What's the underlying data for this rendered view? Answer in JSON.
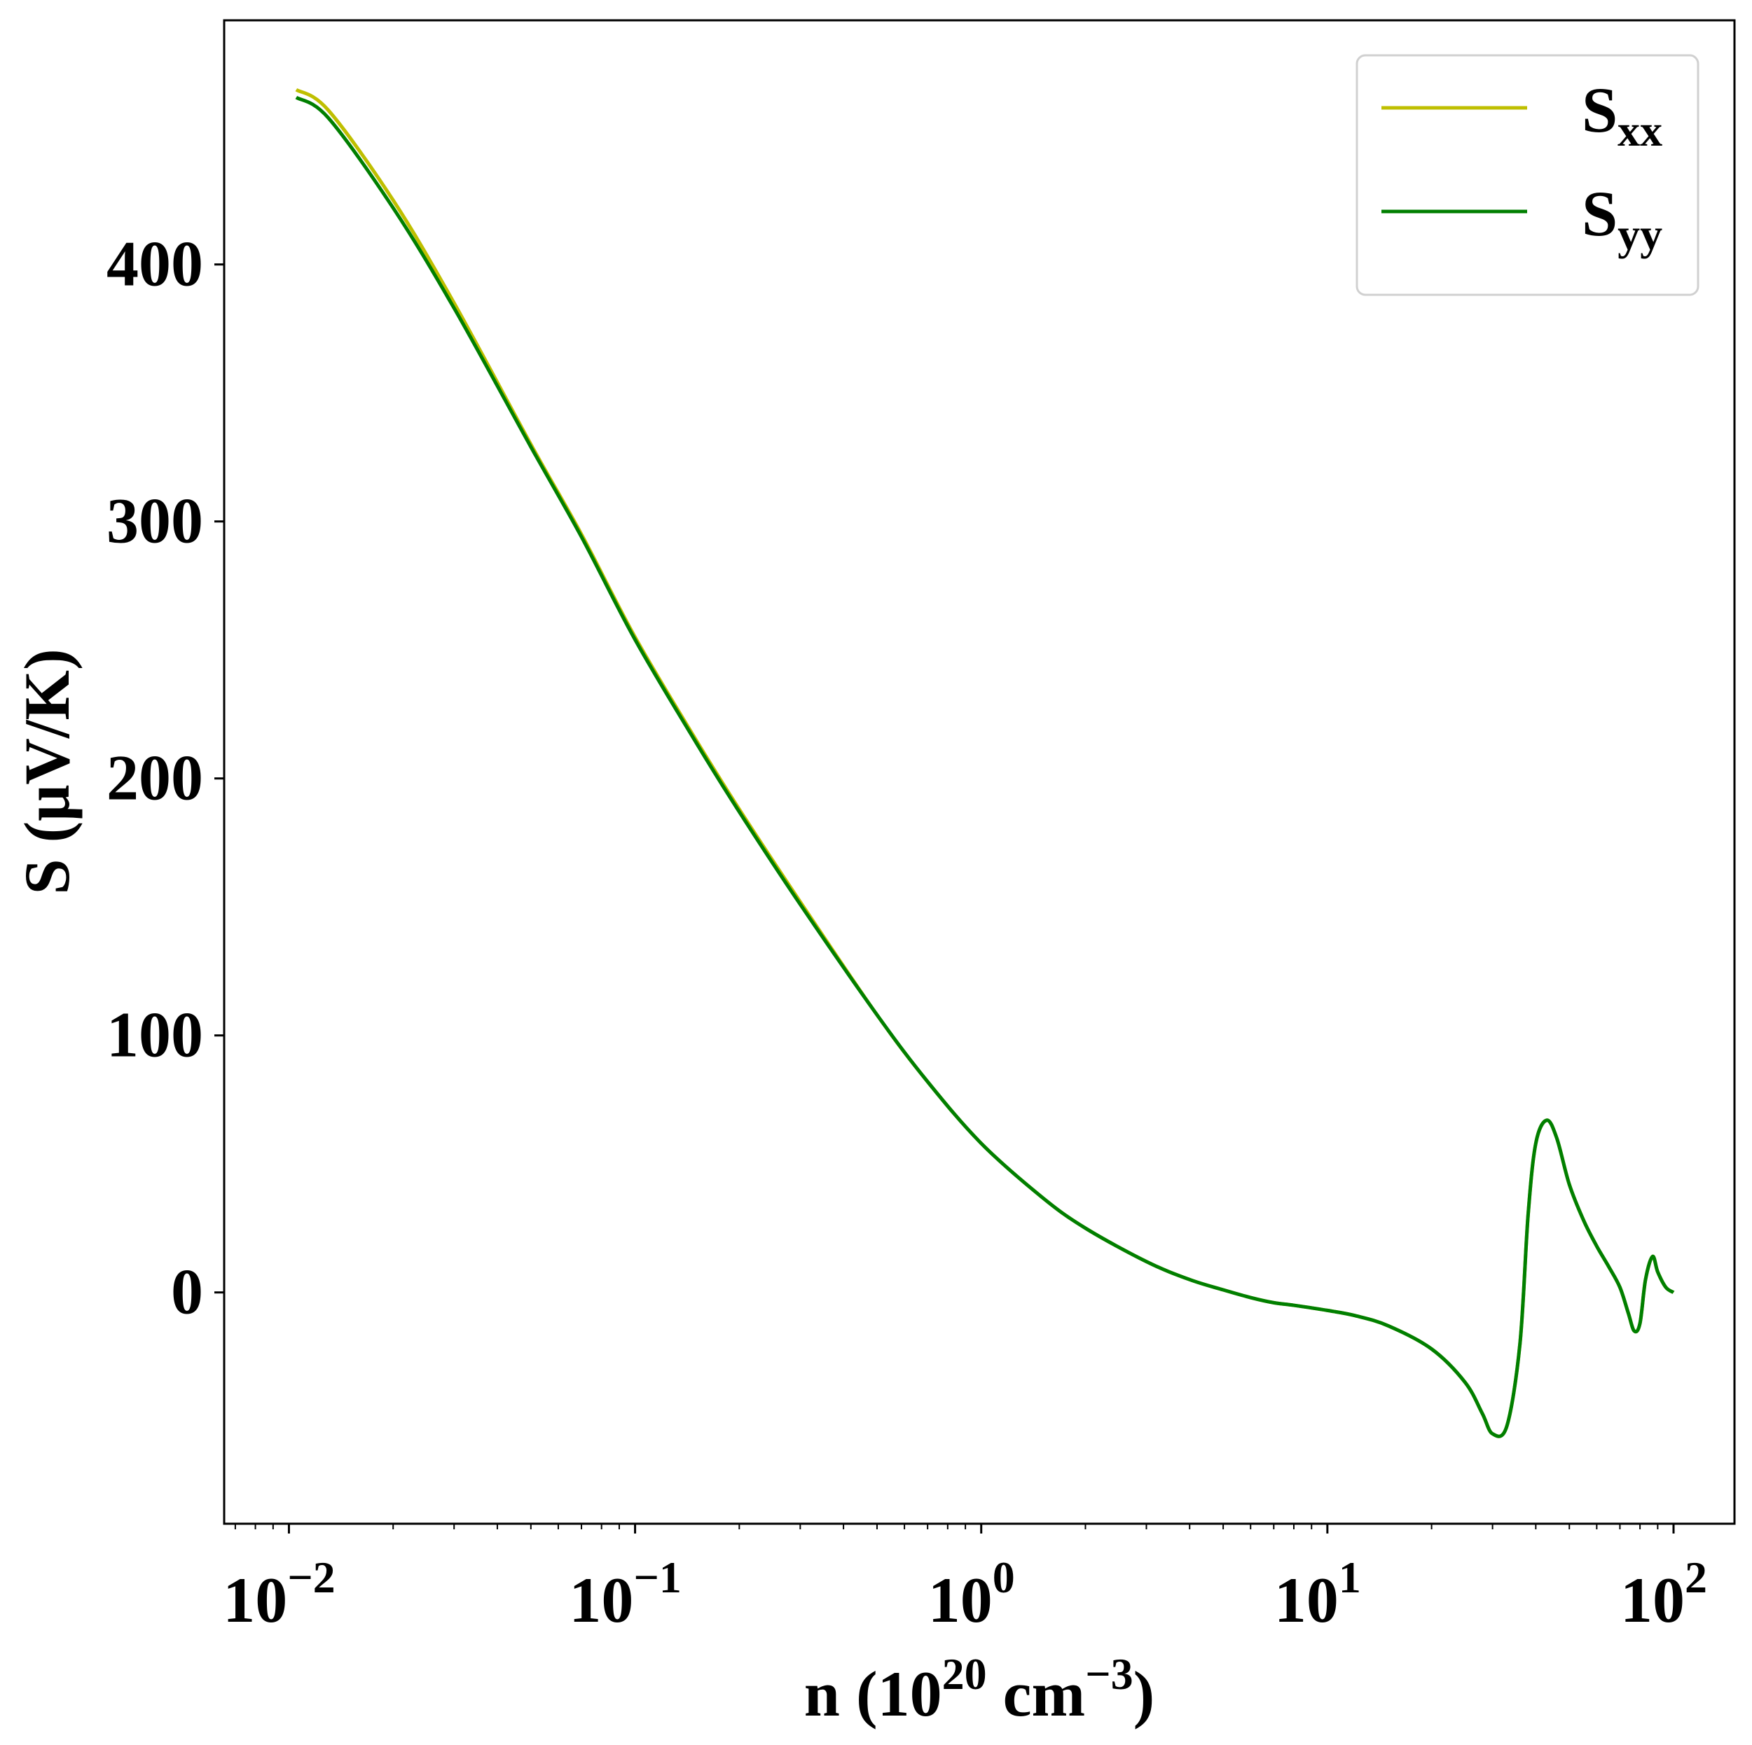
{
  "chart_data": {
    "type": "line",
    "xscale": "log",
    "xlim": [
      0.0065,
      150
    ],
    "ylim": [
      -90,
      495
    ],
    "xlabel": {
      "base": "n (10",
      "sup1": "20",
      "mid": " cm",
      "sup2": "−3",
      "end": ")"
    },
    "ylabel": "S (μV/K)",
    "x_ticks": [
      {
        "value": 0.01,
        "base": "10",
        "exp": "−2"
      },
      {
        "value": 0.1,
        "base": "10",
        "exp": "−1"
      },
      {
        "value": 1,
        "base": "10",
        "exp": "0"
      },
      {
        "value": 10,
        "base": "10",
        "exp": "1"
      },
      {
        "value": 100,
        "base": "10",
        "exp": "2"
      }
    ],
    "y_ticks": [
      0,
      100,
      200,
      300,
      400
    ],
    "grid": false,
    "legend_position": "top-right",
    "series": [
      {
        "name": "S",
        "sub": "xx",
        "color": "#bfbf00",
        "x": [
          0.0105,
          0.013,
          0.02,
          0.03,
          0.05,
          0.07,
          0.1,
          0.15,
          0.2,
          0.3,
          0.5,
          0.7,
          1.0,
          1.5,
          2.0,
          3.0,
          4.0,
          5.0,
          6.0,
          7.0,
          8.0,
          10.0,
          12.0,
          15.0,
          20.0,
          25.0,
          28.0,
          30.0,
          33.0,
          36.0,
          38.0,
          40.0,
          43.0,
          46.0,
          50.0,
          55.0,
          60.0,
          65.0,
          70.0,
          74.0,
          77.0,
          80.0,
          83.0,
          87.0,
          90.0,
          95.0,
          100.0
        ],
        "y": [
          468,
          460,
          425,
          385,
          330,
          295,
          255,
          215,
          188,
          152,
          108,
          82,
          58,
          37,
          25,
          12,
          5,
          1,
          -2,
          -4,
          -5,
          -7,
          -9,
          -13,
          -22,
          -35,
          -47,
          -55,
          -52,
          -20,
          30,
          58,
          67,
          60,
          42,
          28,
          18,
          10,
          2,
          -8,
          -15,
          -12,
          5,
          14,
          8,
          2,
          0
        ]
      },
      {
        "name": "S",
        "sub": "yy",
        "color": "#007f00",
        "x": [
          0.0105,
          0.013,
          0.02,
          0.03,
          0.05,
          0.07,
          0.1,
          0.15,
          0.2,
          0.3,
          0.5,
          0.7,
          1.0,
          1.5,
          2.0,
          3.0,
          4.0,
          5.0,
          6.0,
          7.0,
          8.0,
          10.0,
          12.0,
          15.0,
          20.0,
          25.0,
          28.0,
          30.0,
          33.0,
          36.0,
          38.0,
          40.0,
          43.0,
          46.0,
          50.0,
          55.0,
          60.0,
          65.0,
          70.0,
          74.0,
          77.0,
          80.0,
          83.0,
          87.0,
          90.0,
          95.0,
          100.0
        ],
        "y": [
          465,
          457,
          422,
          383,
          329,
          294,
          254,
          214,
          187,
          151,
          108,
          82,
          58,
          37,
          25,
          12,
          5,
          1,
          -2,
          -4,
          -5,
          -7,
          -9,
          -13,
          -22,
          -35,
          -47,
          -55,
          -52,
          -20,
          30,
          58,
          67,
          60,
          42,
          28,
          18,
          10,
          2,
          -8,
          -15,
          -12,
          5,
          14,
          8,
          2,
          0
        ]
      }
    ]
  }
}
